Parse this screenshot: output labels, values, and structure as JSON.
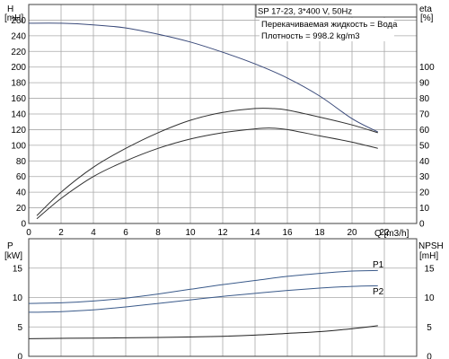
{
  "title_box": {
    "model": "SP 17-23, 3*400 V, 50Hz",
    "liquid": "Перекачиваемая жидкость = Вода",
    "density": "Плотность = 998.2 kg/m3"
  },
  "axes": {
    "top_left_label": "H",
    "top_left_unit": "[mH]",
    "top_right_label": "eta",
    "top_right_unit": "[%]",
    "x_label": "Q [m3/h]",
    "bottom_left_label": "P",
    "bottom_left_unit": "[kW]",
    "bottom_right_label": "NPSH",
    "bottom_right_unit": "[mH]"
  },
  "colors": {
    "grid": "#a9a9a9",
    "frame": "#404040",
    "head_curve": "#3a4a7a",
    "eta_curves": "#303030",
    "power_curves": "#3a5a8a",
    "npsh_curve": "#202020"
  },
  "chart_data": [
    {
      "type": "line",
      "name": "top",
      "x_range": [
        0,
        24
      ],
      "x_ticks": [
        0,
        2,
        4,
        6,
        8,
        10,
        12,
        14,
        16,
        18,
        20,
        22
      ],
      "left_axis": {
        "range": [
          0,
          280
        ],
        "ticks": [
          0,
          20,
          40,
          60,
          80,
          100,
          120,
          140,
          160,
          180,
          200,
          220,
          240,
          260
        ]
      },
      "right_axis": {
        "range": [
          0,
          140
        ],
        "ticks": [
          0,
          10,
          20,
          30,
          40,
          50,
          60,
          70,
          80,
          90,
          100
        ]
      },
      "grid": true,
      "series": [
        {
          "axis": "left",
          "x": [
            0,
            2,
            4,
            6,
            8,
            10,
            12,
            14,
            16,
            18,
            20,
            21.6
          ],
          "y": [
            256,
            256,
            254,
            250,
            242,
            232,
            219,
            204,
            186,
            163,
            134,
            117
          ]
        },
        {
          "axis": "right",
          "x": [
            0.5,
            2,
            4,
            6,
            8,
            10,
            12,
            14,
            15,
            16,
            18,
            20,
            21.6
          ],
          "y": [
            5,
            20,
            36,
            48,
            58,
            66,
            71,
            73.5,
            73.5,
            72.5,
            68,
            63,
            58
          ]
        },
        {
          "axis": "right",
          "x": [
            0.5,
            2,
            4,
            6,
            8,
            10,
            12,
            14,
            15,
            16,
            18,
            20,
            21.6
          ],
          "y": [
            3,
            16,
            30,
            40,
            48,
            54,
            58,
            60.5,
            61,
            60,
            56,
            52,
            48
          ]
        }
      ]
    },
    {
      "type": "line",
      "name": "bottom",
      "x_range": [
        0,
        24
      ],
      "left_axis": {
        "range": [
          0,
          20
        ],
        "ticks": [
          0,
          5,
          10,
          15
        ]
      },
      "right_axis": {
        "range": [
          0,
          20
        ],
        "ticks": [
          0,
          5,
          10,
          15
        ]
      },
      "grid": true,
      "series": [
        {
          "name": "P1",
          "axis": "left",
          "x": [
            0,
            2,
            4,
            6,
            8,
            10,
            12,
            14,
            16,
            18,
            20,
            21.6
          ],
          "y": [
            9.0,
            9.1,
            9.4,
            9.9,
            10.6,
            11.4,
            12.2,
            12.9,
            13.6,
            14.1,
            14.5,
            14.6
          ]
        },
        {
          "name": "P2",
          "axis": "left",
          "x": [
            0,
            2,
            4,
            6,
            8,
            10,
            12,
            14,
            16,
            18,
            20,
            21.6
          ],
          "y": [
            7.5,
            7.6,
            7.9,
            8.4,
            9.0,
            9.6,
            10.2,
            10.7,
            11.2,
            11.6,
            11.9,
            12.0
          ]
        },
        {
          "name": "NPSH",
          "axis": "right",
          "x": [
            0,
            4,
            8,
            12,
            14,
            16,
            18,
            20,
            21.6
          ],
          "y": [
            3.0,
            3.1,
            3.2,
            3.4,
            3.6,
            3.9,
            4.2,
            4.7,
            5.2
          ]
        }
      ]
    }
  ]
}
